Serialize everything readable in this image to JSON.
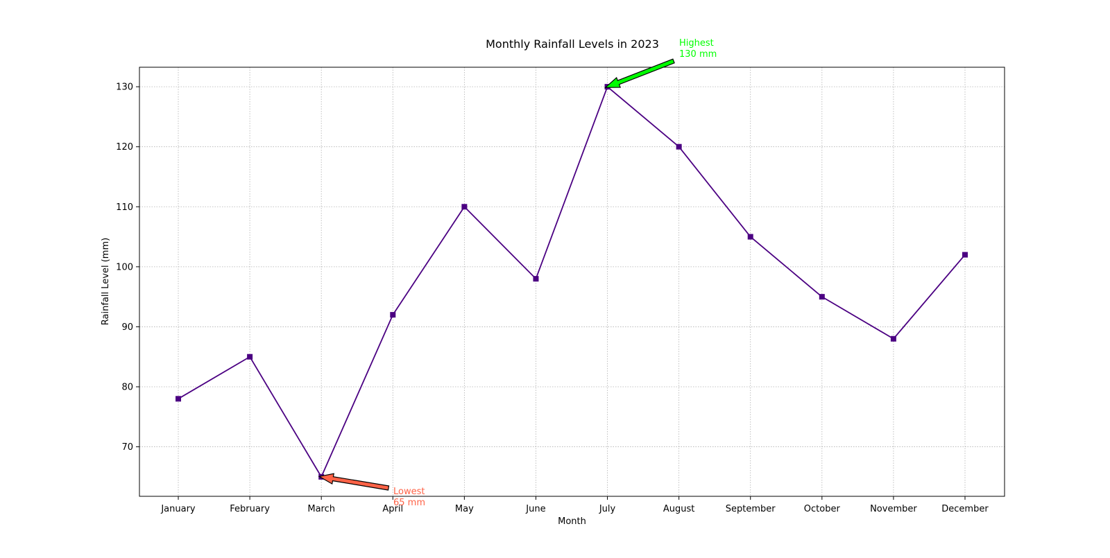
{
  "chart_data": {
    "type": "line",
    "title": "Monthly Rainfall Levels in 2023",
    "xlabel": "Month",
    "ylabel": "Rainfall Level (mm)",
    "categories": [
      "January",
      "February",
      "March",
      "April",
      "May",
      "June",
      "July",
      "August",
      "September",
      "October",
      "November",
      "December"
    ],
    "series": [
      {
        "values": [
          78,
          85,
          65,
          92,
          110,
          98,
          130,
          120,
          105,
          95,
          88,
          102
        ],
        "color": "#4b0082",
        "marker": "square"
      }
    ],
    "ylim": [
      61.75,
      133.25
    ],
    "yticks": [
      70,
      80,
      90,
      100,
      110,
      120,
      130
    ],
    "grid": true,
    "annotations": [
      {
        "point_index": 6,
        "lines": [
          "Highest",
          "130 mm"
        ],
        "color": "#00ff00",
        "arrow_color": "#00ff00"
      },
      {
        "point_index": 2,
        "lines": [
          "Lowest",
          "65 mm"
        ],
        "color": "#ff6347",
        "arrow_color": "#ff6347"
      }
    ]
  }
}
